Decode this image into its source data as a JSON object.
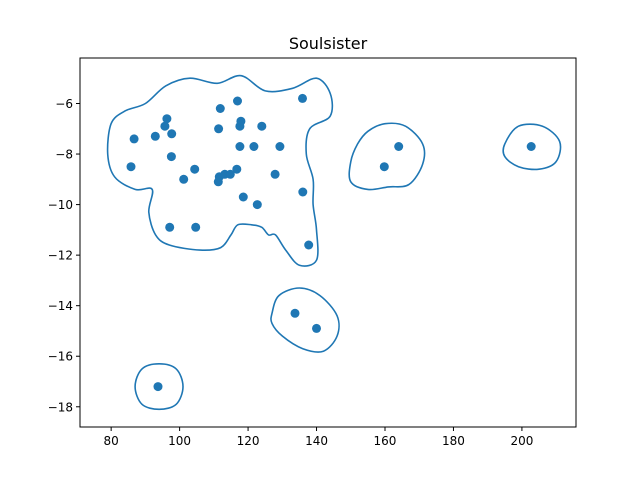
{
  "chart_data": {
    "type": "scatter",
    "title": "Soulsister",
    "xlabel": "",
    "ylabel": "",
    "xlim": [
      70.9,
      215.8
    ],
    "ylim": [
      -18.8,
      -4.2
    ],
    "xticks": [
      80,
      100,
      120,
      140,
      160,
      180,
      200
    ],
    "yticks": [
      -18,
      -16,
      -14,
      -12,
      -10,
      -8,
      -6
    ],
    "xtick_labels": [
      "80",
      "100",
      "120",
      "140",
      "160",
      "180",
      "200"
    ],
    "ytick_labels": [
      "−18",
      "−16",
      "−14",
      "−12",
      "−10",
      "−8",
      "−6"
    ],
    "grid": false,
    "point_color": "#1f77b4",
    "contour_color": "#1f77b4",
    "points": [
      {
        "x": 85.8,
        "y": -8.5
      },
      {
        "x": 86.7,
        "y": -7.4
      },
      {
        "x": 92.9,
        "y": -7.3
      },
      {
        "x": 95.7,
        "y": -6.9
      },
      {
        "x": 96.3,
        "y": -6.6
      },
      {
        "x": 97.7,
        "y": -7.2
      },
      {
        "x": 97.6,
        "y": -8.1
      },
      {
        "x": 101.2,
        "y": -9.0
      },
      {
        "x": 104.4,
        "y": -8.6
      },
      {
        "x": 97.1,
        "y": -10.9
      },
      {
        "x": 104.7,
        "y": -10.9
      },
      {
        "x": 111.4,
        "y": -7.0
      },
      {
        "x": 111.9,
        "y": -6.2
      },
      {
        "x": 116.9,
        "y": -5.9
      },
      {
        "x": 117.6,
        "y": -6.9
      },
      {
        "x": 117.9,
        "y": -6.7
      },
      {
        "x": 117.6,
        "y": -7.7
      },
      {
        "x": 121.7,
        "y": -7.7
      },
      {
        "x": 124.0,
        "y": -6.9
      },
      {
        "x": 129.3,
        "y": -7.7
      },
      {
        "x": 135.9,
        "y": -5.8
      },
      {
        "x": 111.6,
        "y": -8.9
      },
      {
        "x": 111.3,
        "y": -9.1
      },
      {
        "x": 113.2,
        "y": -8.8
      },
      {
        "x": 114.8,
        "y": -8.8
      },
      {
        "x": 116.7,
        "y": -8.6
      },
      {
        "x": 127.9,
        "y": -8.8
      },
      {
        "x": 118.6,
        "y": -9.7
      },
      {
        "x": 122.7,
        "y": -10.0
      },
      {
        "x": 136.0,
        "y": -9.5
      },
      {
        "x": 137.7,
        "y": -11.6
      },
      {
        "x": 159.8,
        "y": -8.5
      },
      {
        "x": 164.0,
        "y": -7.7
      },
      {
        "x": 202.7,
        "y": -7.7
      },
      {
        "x": 133.7,
        "y": -14.3
      },
      {
        "x": 140.0,
        "y": -14.9
      },
      {
        "x": 93.7,
        "y": -17.2
      }
    ],
    "contours": [
      [
        [
          111,
          -5.2
        ],
        [
          118,
          -4.9
        ],
        [
          125,
          -5.5
        ],
        [
          133,
          -5.4
        ],
        [
          140,
          -5.0
        ],
        [
          144,
          -5.6
        ],
        [
          144,
          -6.5
        ],
        [
          138,
          -7.0
        ],
        [
          137,
          -8.0
        ],
        [
          139,
          -9.0
        ],
        [
          139,
          -10.0
        ],
        [
          140,
          -11.0
        ],
        [
          140,
          -12.2
        ],
        [
          135,
          -12.4
        ],
        [
          131,
          -11.8
        ],
        [
          128,
          -11.2
        ],
        [
          126,
          -11.2
        ],
        [
          124,
          -10.9
        ],
        [
          121,
          -10.8
        ],
        [
          117,
          -10.8
        ],
        [
          115,
          -11.2
        ],
        [
          112,
          -11.7
        ],
        [
          106,
          -11.8
        ],
        [
          97,
          -11.6
        ],
        [
          93,
          -11.2
        ],
        [
          91,
          -10.3
        ],
        [
          92,
          -9.4
        ],
        [
          87,
          -9.4
        ],
        [
          81,
          -8.9
        ],
        [
          79,
          -8.0
        ],
        [
          80,
          -6.8
        ],
        [
          84,
          -6.3
        ],
        [
          90,
          -6.0
        ],
        [
          96,
          -5.3
        ],
        [
          103,
          -5.0
        ]
      ],
      [
        [
          152,
          -7.6
        ],
        [
          155,
          -7.1
        ],
        [
          160,
          -6.8
        ],
        [
          166,
          -6.9
        ],
        [
          171,
          -7.6
        ],
        [
          171,
          -8.4
        ],
        [
          167,
          -9.2
        ],
        [
          161,
          -9.3
        ],
        [
          155,
          -9.4
        ],
        [
          150,
          -9.1
        ],
        [
          150,
          -8.3
        ]
      ],
      [
        [
          195,
          -7.6
        ],
        [
          199,
          -6.9
        ],
        [
          206,
          -6.9
        ],
        [
          211,
          -7.5
        ],
        [
          210,
          -8.3
        ],
        [
          205,
          -8.6
        ],
        [
          199,
          -8.5
        ],
        [
          195,
          -8.1
        ]
      ],
      [
        [
          127,
          -14.3
        ],
        [
          129,
          -13.6
        ],
        [
          135,
          -13.3
        ],
        [
          141,
          -13.6
        ],
        [
          146,
          -14.4
        ],
        [
          146,
          -15.2
        ],
        [
          142,
          -15.8
        ],
        [
          136,
          -15.7
        ],
        [
          130,
          -15.2
        ],
        [
          127,
          -14.7
        ]
      ],
      [
        [
          87,
          -17.2
        ],
        [
          89,
          -16.5
        ],
        [
          94,
          -16.3
        ],
        [
          99,
          -16.5
        ],
        [
          101,
          -17.2
        ],
        [
          99,
          -17.9
        ],
        [
          94,
          -18.1
        ],
        [
          89,
          -17.9
        ]
      ]
    ]
  }
}
